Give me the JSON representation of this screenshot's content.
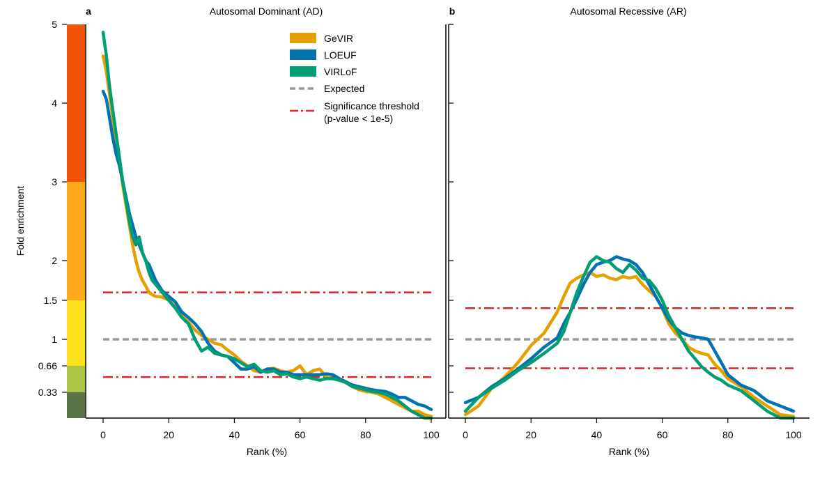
{
  "figure": {
    "shared_ylabel": "Fold enrichment",
    "colors": {
      "GeVIR": "#E69F00",
      "LOEUF": "#0072B2",
      "VIRLoF": "#009E73",
      "Expected": "#999999",
      "Significance": "#D62728"
    }
  },
  "chart_data": [
    {
      "type": "line",
      "panel_label": "a",
      "title": "Autosomal Dominant (AD)",
      "xlabel": "Rank (%)",
      "ylabel": "Fold enrichment",
      "xlim": [
        0,
        100
      ],
      "x_ticks": [
        0,
        20,
        40,
        60,
        80,
        100
      ],
      "y_ticks": [
        0.33,
        0.66,
        1,
        1.5,
        2,
        3,
        4,
        5
      ],
      "y_tick_labels": [
        "0.33",
        "0.66",
        "1",
        "1.5",
        "2",
        "3",
        "4",
        "5"
      ],
      "legend": {
        "position": "top-right",
        "entries": [
          "GeVIR",
          "LOEUF",
          "VIRLoF",
          "Expected",
          "Significance threshold",
          "(p-value < 1e-5)"
        ]
      },
      "color_bar": [
        {
          "from": 0,
          "to": 0.33,
          "color": "#5B7447"
        },
        {
          "from": 0.33,
          "to": 0.66,
          "color": "#ABC545"
        },
        {
          "from": 0.66,
          "to": 1.5,
          "color": "#FCE21C"
        },
        {
          "from": 1.5,
          "to": 3,
          "color": "#FAAA1A"
        },
        {
          "from": 3,
          "to": 5,
          "color": "#F35308"
        }
      ],
      "reference_lines": {
        "expected": 1,
        "significance_upper": 1.6,
        "significance_lower": 0.52
      },
      "series": [
        {
          "name": "GeVIR",
          "x": [
            0,
            1,
            2,
            3,
            4,
            5,
            6,
            7,
            8,
            9,
            10,
            11,
            12,
            13,
            14,
            15,
            16,
            18,
            20,
            22,
            24,
            26,
            28,
            30,
            32,
            34,
            36,
            38,
            40,
            42,
            44,
            46,
            48,
            50,
            52,
            54,
            56,
            58,
            60,
            62,
            64,
            66,
            68,
            70,
            72,
            74,
            76,
            78,
            80,
            82,
            84,
            86,
            88,
            90,
            92,
            94,
            96,
            98,
            100
          ],
          "y": [
            4.6,
            4.4,
            4.1,
            3.8,
            3.5,
            3.25,
            2.95,
            2.7,
            2.45,
            2.2,
            2.0,
            1.85,
            1.75,
            1.68,
            1.6,
            1.57,
            1.55,
            1.54,
            1.5,
            1.42,
            1.3,
            1.22,
            1.12,
            1.05,
            1.0,
            0.95,
            0.93,
            0.86,
            0.8,
            0.72,
            0.66,
            0.6,
            0.58,
            0.62,
            0.63,
            0.6,
            0.58,
            0.6,
            0.66,
            0.55,
            0.6,
            0.62,
            0.52,
            0.5,
            0.48,
            0.46,
            0.4,
            0.36,
            0.34,
            0.33,
            0.32,
            0.3,
            0.28,
            0.26,
            0.24,
            0.22,
            0.22,
            0.2,
            0.19
          ]
        },
        {
          "name": "LOEUF",
          "x": [
            0,
            1,
            2,
            3,
            4,
            5,
            6,
            7,
            8,
            9,
            10,
            11,
            12,
            13,
            14,
            15,
            16,
            18,
            20,
            22,
            24,
            26,
            28,
            30,
            32,
            34,
            36,
            38,
            40,
            42,
            44,
            46,
            48,
            50,
            52,
            54,
            56,
            58,
            60,
            62,
            64,
            66,
            68,
            70,
            72,
            74,
            76,
            78,
            80,
            82,
            84,
            86,
            88,
            90,
            92,
            94,
            96,
            98,
            100
          ],
          "y": [
            4.15,
            4.05,
            3.8,
            3.55,
            3.35,
            3.2,
            3.0,
            2.8,
            2.6,
            2.45,
            2.3,
            2.2,
            2.1,
            2.0,
            1.95,
            1.85,
            1.75,
            1.62,
            1.55,
            1.48,
            1.35,
            1.28,
            1.2,
            1.1,
            0.95,
            0.85,
            0.8,
            0.78,
            0.7,
            0.62,
            0.62,
            0.65,
            0.58,
            0.62,
            0.62,
            0.58,
            0.58,
            0.55,
            0.55,
            0.55,
            0.55,
            0.55,
            0.56,
            0.55,
            0.5,
            0.46,
            0.42,
            0.4,
            0.38,
            0.36,
            0.35,
            0.34,
            0.32,
            0.3,
            0.3,
            0.28,
            0.26,
            0.25,
            0.23
          ]
        },
        {
          "name": "VIRLoF",
          "x": [
            0,
            1,
            2,
            3,
            4,
            5,
            6,
            7,
            8,
            9,
            10,
            11,
            12,
            13,
            14,
            15,
            16,
            18,
            20,
            22,
            24,
            26,
            28,
            30,
            32,
            34,
            36,
            38,
            40,
            42,
            44,
            46,
            48,
            50,
            52,
            54,
            56,
            58,
            60,
            62,
            64,
            66,
            68,
            70,
            72,
            74,
            76,
            78,
            80,
            82,
            84,
            86,
            88,
            90,
            92,
            94,
            96,
            98,
            100
          ],
          "y": [
            4.9,
            4.6,
            4.2,
            3.9,
            3.6,
            3.3,
            3.0,
            2.75,
            2.5,
            2.3,
            2.2,
            2.3,
            2.1,
            2.0,
            1.85,
            1.75,
            1.7,
            1.6,
            1.5,
            1.4,
            1.28,
            1.2,
            1.0,
            0.85,
            0.9,
            0.82,
            0.8,
            0.78,
            0.75,
            0.7,
            0.65,
            0.68,
            0.6,
            0.58,
            0.6,
            0.55,
            0.56,
            0.52,
            0.5,
            0.52,
            0.5,
            0.48,
            0.5,
            0.5,
            0.48,
            0.45,
            0.4,
            0.38,
            0.36,
            0.34,
            0.33,
            0.32,
            0.3,
            0.28,
            0.25,
            0.22,
            0.2,
            0.16,
            0.15
          ]
        }
      ]
    },
    {
      "type": "line",
      "panel_label": "b",
      "title": "Autosomal Recessive (AR)",
      "xlabel": "Rank (%)",
      "xlim": [
        0,
        100
      ],
      "x_ticks": [
        0,
        20,
        40,
        60,
        80,
        100
      ],
      "reference_lines": {
        "expected": 1,
        "significance_upper": 1.4,
        "significance_lower": 0.63
      },
      "series": [
        {
          "name": "GeVIR",
          "x": [
            0,
            4,
            8,
            12,
            16,
            20,
            24,
            28,
            30,
            32,
            34,
            36,
            38,
            40,
            42,
            44,
            46,
            48,
            50,
            52,
            54,
            56,
            58,
            60,
            62,
            64,
            66,
            68,
            70,
            72,
            74,
            76,
            78,
            80,
            84,
            88,
            92,
            96,
            100
          ],
          "y": [
            0.2,
            0.25,
            0.38,
            0.52,
            0.7,
            0.92,
            1.08,
            1.35,
            1.55,
            1.72,
            1.78,
            1.82,
            1.85,
            1.8,
            1.82,
            1.78,
            1.76,
            1.8,
            1.78,
            1.8,
            1.7,
            1.62,
            1.55,
            1.4,
            1.2,
            1.08,
            1.0,
            0.9,
            0.85,
            0.82,
            0.8,
            0.68,
            0.6,
            0.5,
            0.4,
            0.3,
            0.25,
            0.2,
            0.19
          ]
        },
        {
          "name": "LOEUF",
          "x": [
            0,
            4,
            8,
            12,
            16,
            20,
            24,
            28,
            30,
            32,
            34,
            36,
            38,
            40,
            42,
            44,
            46,
            48,
            50,
            52,
            54,
            56,
            58,
            60,
            62,
            64,
            66,
            68,
            70,
            72,
            74,
            76,
            78,
            80,
            84,
            88,
            92,
            96,
            100
          ],
          "y": [
            0.27,
            0.3,
            0.4,
            0.5,
            0.62,
            0.75,
            0.9,
            1.02,
            1.2,
            1.35,
            1.52,
            1.7,
            1.85,
            1.95,
            1.98,
            2.0,
            2.05,
            2.02,
            2.0,
            1.95,
            1.85,
            1.7,
            1.55,
            1.4,
            1.25,
            1.15,
            1.08,
            1.05,
            1.03,
            1.02,
            1.0,
            0.85,
            0.7,
            0.55,
            0.42,
            0.35,
            0.28,
            0.25,
            0.22
          ]
        },
        {
          "name": "VIRLoF",
          "x": [
            0,
            4,
            8,
            12,
            16,
            20,
            24,
            28,
            30,
            32,
            34,
            36,
            38,
            40,
            42,
            44,
            46,
            48,
            50,
            52,
            54,
            56,
            58,
            60,
            62,
            64,
            66,
            68,
            70,
            72,
            74,
            76,
            78,
            80,
            84,
            88,
            92,
            96,
            100
          ],
          "y": [
            0.22,
            0.3,
            0.38,
            0.48,
            0.6,
            0.7,
            0.82,
            0.95,
            1.1,
            1.35,
            1.6,
            1.8,
            1.98,
            2.05,
            2.0,
            1.98,
            1.9,
            1.85,
            1.95,
            1.88,
            1.78,
            1.75,
            1.65,
            1.5,
            1.3,
            1.15,
            1.0,
            0.85,
            0.75,
            0.65,
            0.58,
            0.52,
            0.48,
            0.42,
            0.35,
            0.28,
            0.22,
            0.18,
            0.16
          ]
        }
      ]
    }
  ]
}
